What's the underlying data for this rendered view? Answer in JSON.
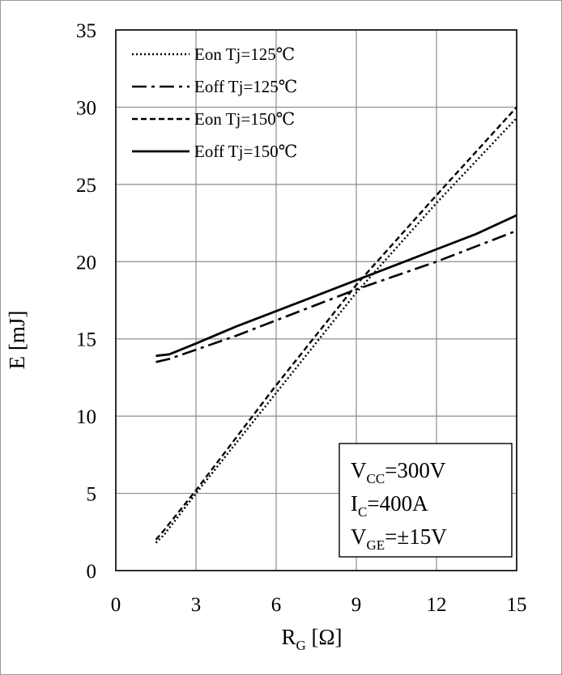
{
  "chart_data": {
    "type": "line",
    "title": "",
    "xlabel": {
      "main": "R",
      "sub": "G",
      "unit": " [Ω]"
    },
    "ylabel": "E [mJ]",
    "xlim": [
      0,
      15
    ],
    "ylim": [
      0,
      35
    ],
    "xticks": [
      0,
      3,
      6,
      9,
      12,
      15
    ],
    "yticks": [
      0,
      5,
      10,
      15,
      20,
      25,
      30,
      35
    ],
    "grid": true,
    "legend_position": "top-left",
    "series": [
      {
        "name": "Eon Tj=125℃",
        "style": "dotted",
        "x": [
          1.5,
          1.8,
          3,
          6,
          9,
          12,
          15
        ],
        "y": [
          1.8,
          2.3,
          5.0,
          11.5,
          18.0,
          23.8,
          29.3
        ]
      },
      {
        "name": "Eoff Tj=125℃",
        "style": "dashdot",
        "x": [
          1.5,
          2,
          3,
          4.5,
          6,
          9,
          12,
          13.5,
          15
        ],
        "y": [
          13.5,
          13.7,
          14.3,
          15.2,
          16.2,
          18.2,
          20.0,
          21.0,
          22.0
        ]
      },
      {
        "name": "Eon Tj=150℃",
        "style": "dashed",
        "x": [
          1.5,
          1.8,
          3,
          6,
          9,
          12,
          15
        ],
        "y": [
          2.0,
          2.6,
          5.2,
          12.0,
          18.5,
          24.3,
          30.0
        ]
      },
      {
        "name": "Eoff Tj=150℃",
        "style": "solid",
        "x": [
          1.5,
          2,
          3,
          4.5,
          6,
          9,
          12,
          13.5,
          15
        ],
        "y": [
          13.9,
          14.0,
          14.7,
          15.8,
          16.8,
          18.8,
          20.8,
          21.8,
          23.0
        ]
      }
    ],
    "conditions": [
      {
        "main": "V",
        "sub": "CC",
        "rest": "=300V"
      },
      {
        "main": "I",
        "sub": "C",
        "rest": "=400A"
      },
      {
        "main": "V",
        "sub": "GE",
        "rest": "=±15V"
      }
    ]
  }
}
